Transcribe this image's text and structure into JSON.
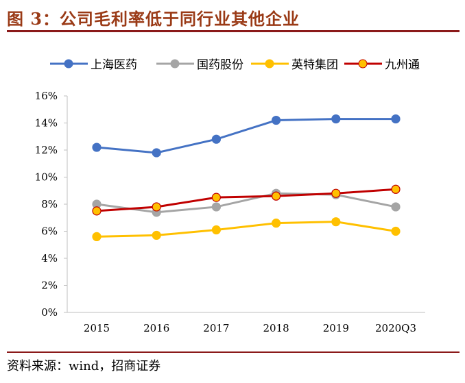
{
  "title": "图 3：公司毛利率低于同行业其他企业",
  "source": "资料来源：wind，招商证券",
  "chart_data": {
    "type": "line",
    "categories": [
      "2015",
      "2016",
      "2017",
      "2018",
      "2019",
      "2020Q3"
    ],
    "ylim": [
      0,
      16
    ],
    "yticks": [
      "0%",
      "2%",
      "4%",
      "6%",
      "8%",
      "10%",
      "12%",
      "14%",
      "16%"
    ],
    "grid": false,
    "legend": "top",
    "series": [
      {
        "name": "上海医药",
        "color": "#4472c4",
        "marker_fill": "#4472c4",
        "values": [
          12.2,
          11.8,
          12.8,
          14.2,
          14.3,
          14.3
        ]
      },
      {
        "name": "国药股份",
        "color": "#a5a5a5",
        "marker_fill": "#a5a5a5",
        "values": [
          8.0,
          7.4,
          7.8,
          8.8,
          8.7,
          7.8
        ]
      },
      {
        "name": "英特集团",
        "color": "#ffc000",
        "marker_fill": "#ffc000",
        "values": [
          5.6,
          5.7,
          6.1,
          6.6,
          6.7,
          6.0
        ]
      },
      {
        "name": "九州通",
        "color": "#c00000",
        "marker_fill": "#ffc000",
        "values": [
          7.5,
          7.8,
          8.5,
          8.6,
          8.8,
          9.1
        ]
      }
    ]
  }
}
